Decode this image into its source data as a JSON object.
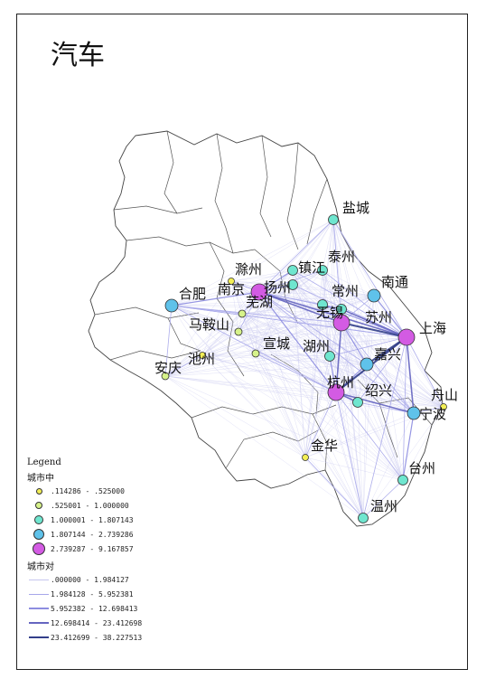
{
  "title": "汽车",
  "colors": {
    "node_classes": [
      "#f2ee55",
      "#d6f28a",
      "#6fe6cf",
      "#5fc2ea",
      "#d35be3"
    ],
    "edge_classes": [
      "#c6c6ee",
      "#a7a7ea",
      "#8d8de0",
      "#6565c0",
      "#333f8a"
    ],
    "boundary": "#444444"
  },
  "cities": [
    {
      "name": "盐城",
      "cls": 2
    },
    {
      "name": "泰州",
      "cls": 2
    },
    {
      "name": "镇江",
      "cls": 2
    },
    {
      "name": "扬州",
      "cls": 2
    },
    {
      "name": "滁州",
      "cls": 0
    },
    {
      "name": "南京",
      "cls": 4
    },
    {
      "name": "合肥",
      "cls": 3
    },
    {
      "name": "常州",
      "cls": 2
    },
    {
      "name": "南通",
      "cls": 3
    },
    {
      "name": "无锡",
      "cls": 2
    },
    {
      "name": "苏州",
      "cls": 4
    },
    {
      "name": "上海",
      "cls": 4
    },
    {
      "name": "芜湖",
      "cls": 1
    },
    {
      "name": "马鞍山",
      "cls": 1
    },
    {
      "name": "宣城",
      "cls": 1
    },
    {
      "name": "湖州",
      "cls": 2
    },
    {
      "name": "嘉兴",
      "cls": 3
    },
    {
      "name": "池州",
      "cls": 0
    },
    {
      "name": "安庆",
      "cls": 1
    },
    {
      "name": "杭州",
      "cls": 4
    },
    {
      "name": "绍兴",
      "cls": 2
    },
    {
      "name": "舟山",
      "cls": 0
    },
    {
      "name": "宁波",
      "cls": 3
    },
    {
      "name": "金华",
      "cls": 0
    },
    {
      "name": "台州",
      "cls": 2
    },
    {
      "name": "温州",
      "cls": 2
    }
  ],
  "legend": {
    "title": "Legend",
    "node_header": "城市中",
    "node_items": [
      ".114286 - .525000",
      ".525001 - 1.000000",
      "1.000001 - 1.807143",
      "1.807144 - 2.739286",
      "2.739287 - 9.167857"
    ],
    "edge_header": "城市对",
    "edge_items": [
      ".000000 - 1.984127",
      "1.984128 - 5.952381",
      "5.952382 - 12.698413",
      "12.698414 - 23.412698",
      "23.412699 - 38.227513"
    ]
  }
}
